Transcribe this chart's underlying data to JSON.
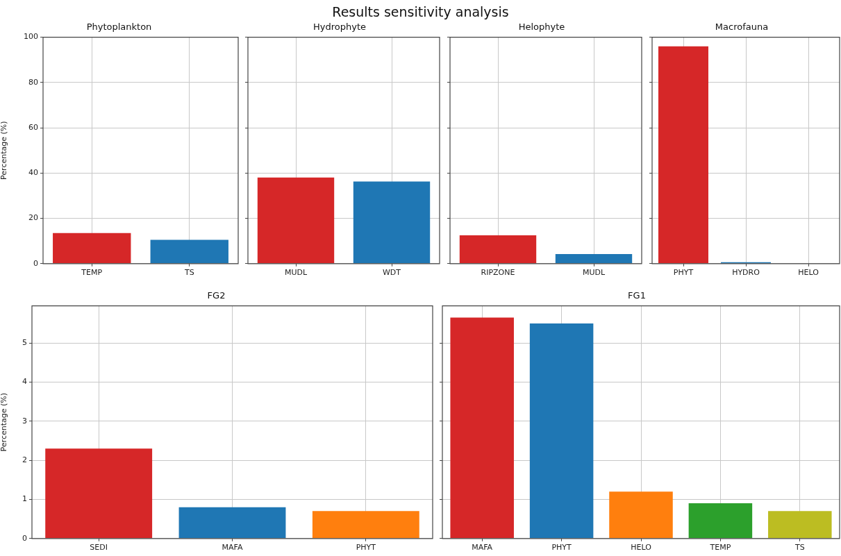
{
  "chart_data": [
    {
      "type": "bar",
      "title": "Phytoplankton",
      "ylabel": "Percentage (%)",
      "annotations": [
        "Results sensitivity analysis"
      ],
      "categories": [
        "TEMP",
        "TS"
      ],
      "values": [
        13.5,
        10.5
      ],
      "colors": [
        "#d62728",
        "#1f77b4"
      ],
      "ylim": [
        0,
        100
      ],
      "yticks": [
        0,
        20,
        40,
        60,
        80,
        100
      ],
      "grid": true
    },
    {
      "type": "bar",
      "title": "Hydrophyte",
      "categories": [
        "MUDL",
        "WDT"
      ],
      "values": [
        38,
        36.3
      ],
      "colors": [
        "#d62728",
        "#1f77b4"
      ],
      "ylim": [
        0,
        100
      ],
      "yticks": [
        0,
        20,
        40,
        60,
        80,
        100
      ],
      "grid": true,
      "tick_labels": "x"
    },
    {
      "type": "bar",
      "title": "Helophyte",
      "categories": [
        "RIPZONE",
        "MUDL"
      ],
      "values": [
        12.5,
        4.2
      ],
      "colors": [
        "#d62728",
        "#1f77b4"
      ],
      "ylim": [
        0,
        100
      ],
      "yticks": [
        0,
        20,
        40,
        60,
        80,
        100
      ],
      "grid": true,
      "tick_labels": "x"
    },
    {
      "type": "bar",
      "title": "Macrofauna",
      "categories": [
        "PHYT",
        "HYDRO",
        "HELO"
      ],
      "values": [
        96,
        0.6,
        0
      ],
      "colors": [
        "#d62728",
        "#1f77b4",
        "#ff7f0e"
      ],
      "ylim": [
        0,
        100
      ],
      "yticks": [
        0,
        20,
        40,
        60,
        80,
        100
      ],
      "grid": true,
      "tick_labels": "x"
    },
    {
      "type": "bar",
      "title": "FG2",
      "ylabel": "Percentage (%)",
      "categories": [
        "SEDI",
        "MAFA",
        "PHYT"
      ],
      "values": [
        2.3,
        0.8,
        0.7
      ],
      "colors": [
        "#d62728",
        "#1f77b4",
        "#ff7f0e"
      ],
      "ylim": [
        0,
        5.95
      ],
      "yticks": [
        0,
        1,
        2,
        3,
        4,
        5
      ],
      "grid": true
    },
    {
      "type": "bar",
      "title": "FG1",
      "categories": [
        "MAFA",
        "PHYT",
        "HELO",
        "TEMP",
        "TS"
      ],
      "values": [
        5.65,
        5.5,
        1.2,
        0.9,
        0.7
      ],
      "colors": [
        "#d62728",
        "#1f77b4",
        "#ff7f0e",
        "#2ca02c",
        "#bcbd22"
      ],
      "ylim": [
        0,
        5.95
      ],
      "yticks": [
        0,
        1,
        2,
        3,
        4,
        5
      ],
      "grid": true,
      "tick_labels": "x"
    }
  ]
}
